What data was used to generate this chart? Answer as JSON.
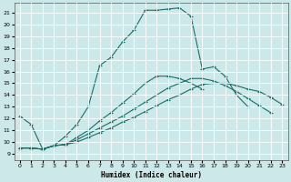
{
  "xlabel": "Humidex (Indice chaleur)",
  "background_color": "#cce8e8",
  "grid_color": "#b0d0d0",
  "line_color": "#1a6e6a",
  "xlim": [
    -0.5,
    23.5
  ],
  "ylim": [
    8.5,
    21.8
  ],
  "xticks": [
    0,
    1,
    2,
    3,
    4,
    5,
    6,
    7,
    8,
    9,
    10,
    11,
    12,
    13,
    14,
    15,
    16,
    17,
    18,
    19,
    20,
    21,
    22,
    23
  ],
  "yticks": [
    9,
    10,
    11,
    12,
    13,
    14,
    15,
    16,
    17,
    18,
    19,
    20,
    21
  ],
  "curve1_x": [
    0,
    1,
    2,
    3,
    4,
    5,
    6,
    7,
    8,
    9,
    10,
    11,
    12,
    13,
    14,
    15,
    16,
    17,
    18,
    19,
    20
  ],
  "curve1_y": [
    12.2,
    11.5,
    9.4,
    9.7,
    10.5,
    11.5,
    13.0,
    16.5,
    17.2,
    18.5,
    19.5,
    21.2,
    21.2,
    21.3,
    21.4,
    20.7,
    16.2,
    16.4,
    15.6,
    14.0,
    13.0
  ],
  "curve2_x": [
    0,
    1,
    2,
    3,
    4,
    5,
    6,
    7,
    8,
    9,
    10,
    11,
    12,
    13,
    14,
    15,
    16,
    17,
    18,
    19,
    20,
    21,
    22,
    23
  ],
  "curve2_y": [
    9.5,
    9.5,
    9.4,
    9.7,
    9.8,
    10.0,
    10.4,
    10.8,
    11.2,
    11.7,
    12.1,
    12.6,
    13.1,
    13.6,
    14.0,
    14.5,
    14.9,
    15.0,
    15.0,
    14.8,
    14.5,
    14.3,
    13.8,
    13.2
  ],
  "curve3_x": [
    0,
    1,
    2,
    3,
    4,
    5,
    6,
    7,
    8,
    9,
    10,
    11,
    12,
    13,
    14,
    15,
    16,
    17,
    18,
    19,
    20,
    21,
    22,
    23
  ],
  "curve3_y": [
    9.5,
    9.5,
    9.4,
    9.7,
    9.8,
    10.2,
    10.7,
    11.2,
    11.7,
    12.2,
    12.8,
    13.4,
    14.0,
    14.6,
    15.0,
    15.4,
    15.4,
    15.2,
    14.8,
    14.3,
    13.7,
    13.1,
    12.5,
    null
  ],
  "curve4_x": [
    0,
    1,
    2,
    3,
    4,
    5,
    6,
    7,
    8,
    9,
    10,
    11,
    12,
    13,
    14,
    15,
    16,
    17,
    18,
    19,
    20,
    21,
    22,
    23
  ],
  "curve4_y": [
    9.5,
    9.5,
    9.4,
    9.7,
    9.8,
    10.4,
    11.0,
    11.8,
    12.5,
    13.3,
    14.1,
    15.0,
    15.6,
    15.6,
    15.4,
    15.0,
    14.5,
    null,
    null,
    null,
    null,
    null,
    null,
    null
  ]
}
